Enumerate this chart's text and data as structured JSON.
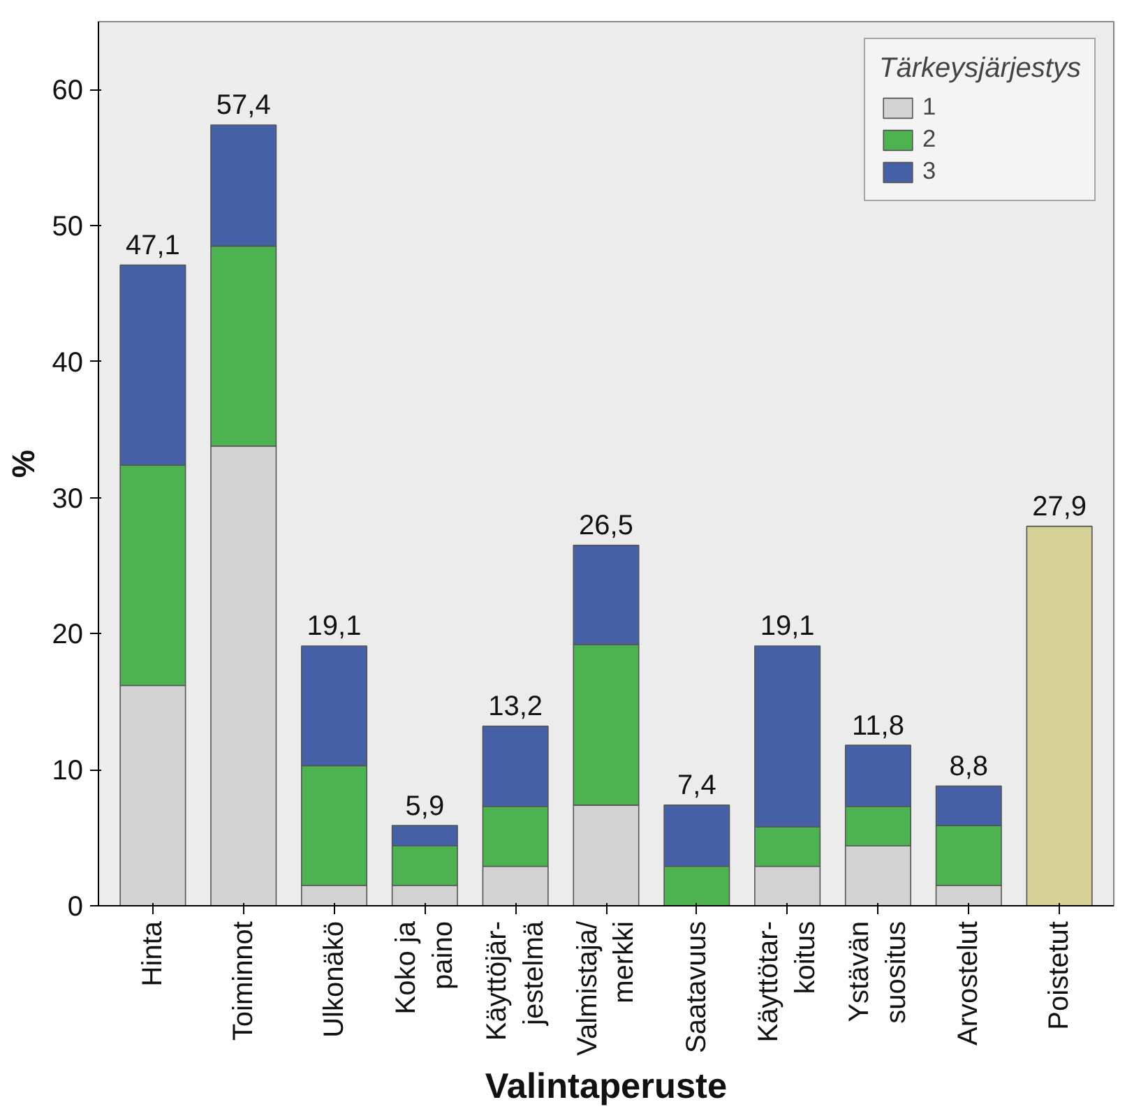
{
  "chart_data": {
    "type": "bar",
    "stacked": true,
    "xlabel": "Valintaperuste",
    "ylabel": "%",
    "legend_title": "Tärkeysjärjestys",
    "legend": "top right",
    "grid": false,
    "categories": [
      "Hinta",
      "Toiminnot",
      "Ulkonäkö",
      "Koko ja\npaino",
      "Käyttöjär-\njestelmä",
      "Valmistaja/\nmerkki",
      "Saatavuus",
      "Käyttötar-\nkoitus",
      "Ystävän\nsuositus",
      "Arvostelut",
      "Poistetut"
    ],
    "series": [
      {
        "name": "1",
        "color": "#d3d3d3",
        "values": [
          16.2,
          33.8,
          1.5,
          1.5,
          2.9,
          7.4,
          0,
          2.9,
          4.4,
          1.5,
          null
        ]
      },
      {
        "name": "2",
        "color": "#4db350",
        "values": [
          16.2,
          14.7,
          8.8,
          2.9,
          4.4,
          11.8,
          2.9,
          2.9,
          2.9,
          4.4,
          null
        ]
      },
      {
        "name": "3",
        "color": "#4560a6",
        "values": [
          14.7,
          8.9,
          8.8,
          1.5,
          5.9,
          7.3,
          4.5,
          13.3,
          4.5,
          2.9,
          null
        ]
      },
      {
        "color": "#d6d196",
        "values": [
          null,
          null,
          null,
          null,
          null,
          null,
          null,
          null,
          null,
          null,
          27.9
        ]
      }
    ],
    "totals": [
      "47,1",
      "57,4",
      "19,1",
      "5,9",
      "13,2",
      "26,5",
      "7,4",
      "19,1",
      "11,8",
      "8,8",
      "27,9"
    ],
    "ylim": [
      0,
      65
    ],
    "yticks": [
      0,
      10,
      20,
      30,
      40,
      50,
      60
    ]
  }
}
